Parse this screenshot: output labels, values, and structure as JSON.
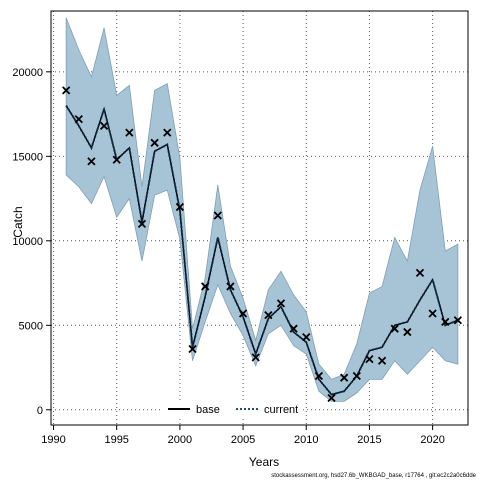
{
  "chart_data": {
    "type": "line",
    "xlabel": "Years",
    "ylabel": "Catch",
    "xlim": [
      1989.8,
      2022.8
    ],
    "ylim": [
      -900,
      23600
    ],
    "x_ticks": [
      1990,
      1995,
      2000,
      2005,
      2010,
      2015,
      2020
    ],
    "y_ticks": [
      0,
      5000,
      10000,
      15000,
      20000
    ],
    "grid": true,
    "legend_position": "bottom",
    "colors": {
      "band": "#a6c4d6",
      "band_edge": "#7f9fb3",
      "line": "#000000",
      "marker": "#000000"
    },
    "x": [
      1991,
      1992,
      1993,
      1994,
      1995,
      1996,
      1997,
      1998,
      1999,
      2000,
      2001,
      2002,
      2003,
      2004,
      2005,
      2006,
      2007,
      2008,
      2009,
      2010,
      2011,
      2012,
      2013,
      2014,
      2015,
      2016,
      2017,
      2018,
      2019,
      2020,
      2021,
      2022
    ],
    "series": [
      {
        "name": "base",
        "style": "solid",
        "values": [
          18000,
          16800,
          15500,
          17800,
          14800,
          15500,
          11100,
          15300,
          15700,
          11800,
          3700,
          6700,
          10200,
          7100,
          5500,
          3300,
          5400,
          6100,
          4600,
          4000,
          1800,
          900,
          1100,
          2000,
          3500,
          3700,
          5000,
          5200,
          6500,
          7700,
          5000,
          5300
        ]
      },
      {
        "name": "current",
        "style": "dotted",
        "values": [
          18000,
          16800,
          15500,
          17800,
          14800,
          15500,
          11100,
          15300,
          15700,
          11800,
          3700,
          6700,
          10200,
          7100,
          5500,
          3300,
          5400,
          6100,
          4600,
          4000,
          1800,
          900,
          1100,
          2000,
          3500,
          3700,
          5000,
          5200,
          6500,
          7700,
          5000,
          5300
        ]
      }
    ],
    "band": {
      "upper": [
        23200,
        21300,
        19700,
        22600,
        18600,
        19200,
        13200,
        18900,
        19300,
        14900,
        4800,
        7800,
        13300,
        8500,
        6600,
        4100,
        7100,
        8200,
        6800,
        5800,
        2700,
        1800,
        2100,
        3900,
        6900,
        7300,
        10200,
        8800,
        13000,
        15600,
        9400,
        9800
      ],
      "lower": [
        13900,
        13200,
        12200,
        13800,
        11400,
        12500,
        8800,
        12700,
        13000,
        10100,
        2900,
        5200,
        7400,
        5700,
        4400,
        2600,
        4500,
        5000,
        3800,
        3300,
        1100,
        500,
        500,
        1000,
        1800,
        1800,
        2900,
        2100,
        2900,
        3700,
        2900,
        2700
      ]
    },
    "observed": {
      "marker": "x",
      "values": [
        18900,
        17200,
        14700,
        16800,
        14800,
        16400,
        11000,
        15800,
        16400,
        12000,
        3600,
        7300,
        11500,
        7300,
        5700,
        3100,
        5600,
        6300,
        4800,
        4300,
        2000,
        700,
        1900,
        2000,
        3000,
        2900,
        4800,
        4600,
        8100,
        5700,
        5200,
        5300
      ]
    }
  },
  "legend": {
    "base": "base",
    "current": "current"
  },
  "footer": "stockassessment.org, hsd27.6b_WKBGAD_base, r17764 , git:ec2c2a0c6dde"
}
